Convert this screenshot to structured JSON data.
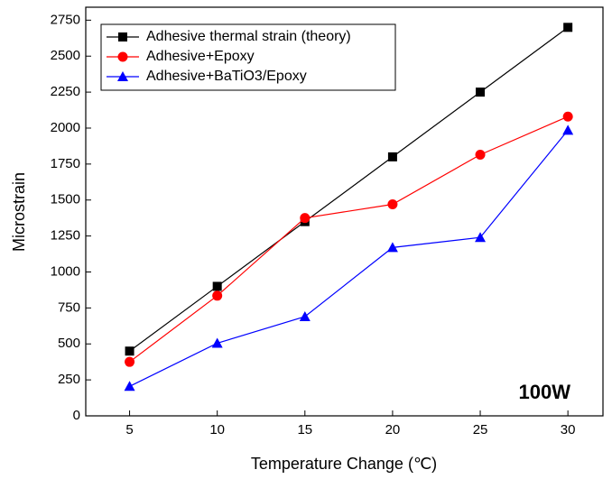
{
  "chart_data": {
    "type": "line",
    "x_label": "Temperature Change (℃)",
    "y_label": "Microstrain",
    "annotation": "100W",
    "x": [
      5,
      10,
      15,
      20,
      25,
      30
    ],
    "series": [
      {
        "name": "Adhesive thermal strain (theory)",
        "color": "#000000",
        "marker": "square",
        "values": [
          450,
          900,
          1350,
          1800,
          2250,
          2700
        ]
      },
      {
        "name": "Adhesive+Epoxy",
        "color": "#ff0000",
        "marker": "circle",
        "values": [
          375,
          835,
          1375,
          1470,
          1815,
          2080
        ]
      },
      {
        "name": "Adhesive+BaTiO3/Epoxy",
        "color": "#0000ff",
        "marker": "triangle",
        "values": [
          205,
          505,
          690,
          1170,
          1240,
          1985
        ]
      }
    ],
    "xlim": [
      2.5,
      32
    ],
    "xticks": [
      5,
      10,
      15,
      20,
      25,
      30
    ],
    "ylim": [
      0,
      2840
    ],
    "yticks": [
      0,
      250,
      500,
      750,
      1000,
      1250,
      1500,
      1750,
      2000,
      2250,
      2500,
      2750
    ],
    "legend": "upper left"
  }
}
